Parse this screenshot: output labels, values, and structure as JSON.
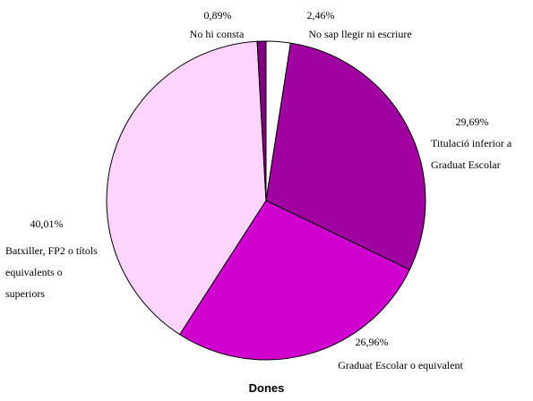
{
  "chart_data": {
    "type": "pie",
    "title": "Dones",
    "categories": [
      "No sap llegir ni escriure",
      "Titulació inferior a Graduat Escolar",
      "Graduat Escolar o equivalent",
      "Batxiller, FP2 o títols equivalents o superiors",
      "No hi consta"
    ],
    "values": [
      2.46,
      29.69,
      26.96,
      40.01,
      0.89
    ],
    "value_labels": [
      "2,46%",
      "29,69%",
      "26,96%",
      "40,01%",
      "0,89%"
    ],
    "colors": [
      "#ffffff",
      "#a000a0",
      "#d000d0",
      "#ffd4ff",
      "#800080"
    ]
  }
}
